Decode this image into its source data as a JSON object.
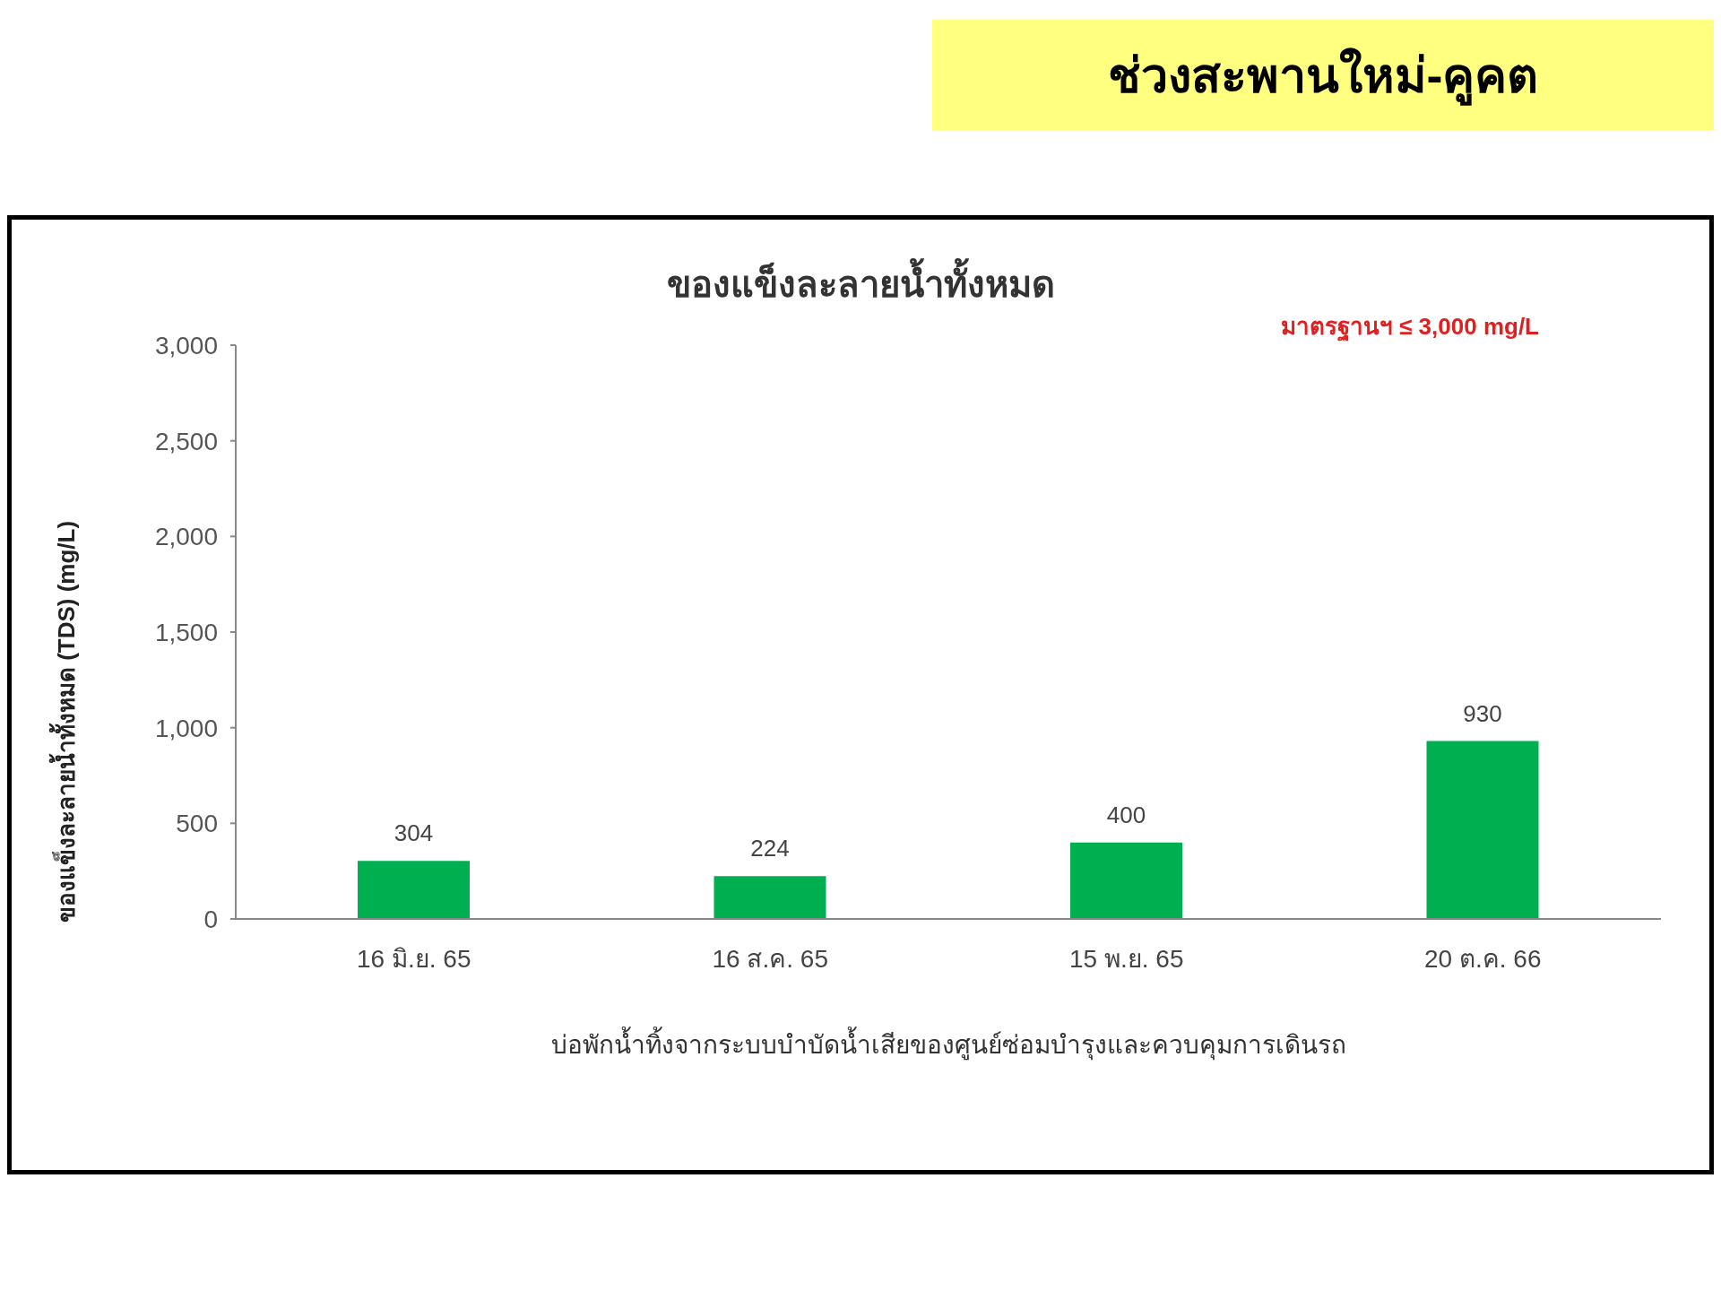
{
  "chart_data": {
    "type": "bar",
    "title": "ช่วงสะพานใหม่-คูคต",
    "subtitle": "ของแข็งละลายน้ำทั้งหมด",
    "annotations": [
      "มาตรฐานฯ ≤ 3,000 mg/L"
    ],
    "xlabel": "บ่อพักน้ำทิ้งจากระบบบำบัดน้ำเสียของศูนย์ซ่อมบำรุงและควบคุมการเดินรถ",
    "ylabel": "ของแข็งละลายน้ำทั้งหมด (TDS) (mg/L)",
    "categories": [
      "16 มิ.ย. 65",
      "16 ส.ค. 65",
      "15 พ.ย. 65",
      "20 ต.ค. 66"
    ],
    "values": [
      304,
      224,
      400,
      930
    ],
    "color": "#00b050",
    "ylim": [
      0,
      3000
    ],
    "yticks": [
      0,
      500,
      {
        "value": 1000,
        "label": "1,000"
      },
      {
        "value": 1500,
        "label": "1,500"
      },
      {
        "value": 2000,
        "label": "2,000"
      },
      {
        "value": 2500,
        "label": "2,500"
      },
      {
        "value": 3000,
        "label": "3,000"
      }
    ],
    "data_labels": true,
    "grid": false,
    "legend": false
  }
}
